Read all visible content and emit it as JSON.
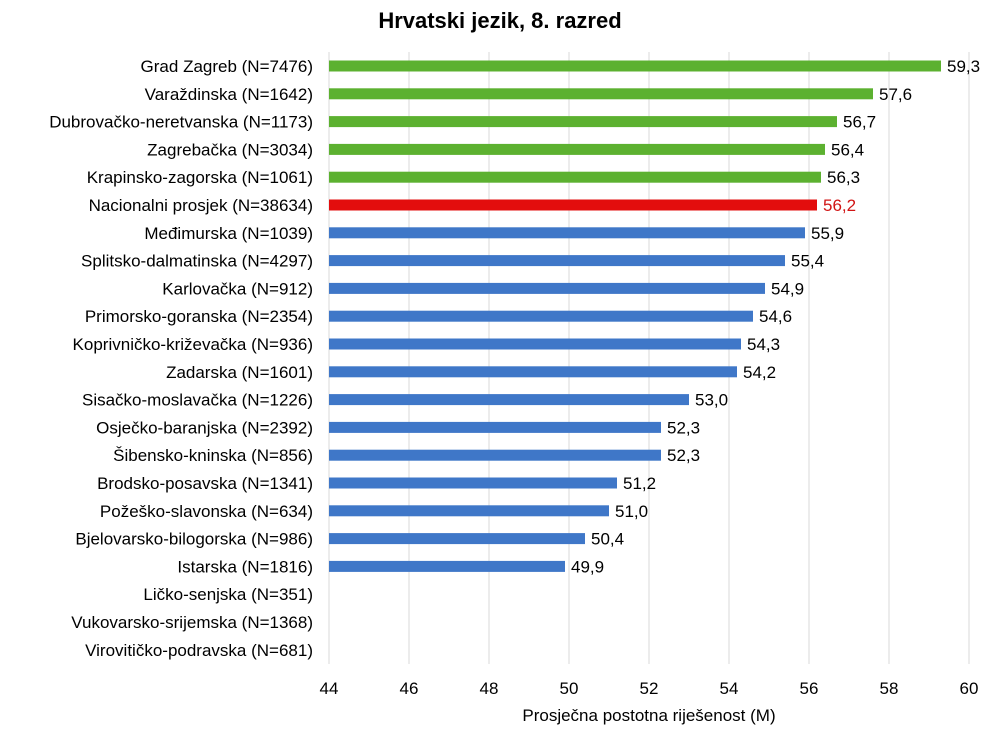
{
  "chart_data": {
    "type": "bar",
    "orientation": "horizontal",
    "title": "Hrvatski jezik, 8. razred",
    "xlabel": "Prosječna postotna riješenost (M)",
    "ylabel": "",
    "xlim": [
      44,
      60
    ],
    "x_ticks": [
      "44",
      "46",
      "48",
      "50",
      "52",
      "54",
      "56",
      "58",
      "60"
    ],
    "grid": "vertical",
    "colors": {
      "above": "#5cb130",
      "national": "#e30d0d",
      "below": "#3f77c8",
      "national_label": "#d11414"
    },
    "categories": [
      "Grad Zagreb (N=7476)",
      "Varaždinska (N=1642)",
      "Dubrovačko-neretvanska (N=1173)",
      "Zagrebačka (N=3034)",
      "Krapinsko-zagorska (N=1061)",
      "Nacionalni prosjek (N=38634)",
      "Međimurska (N=1039)",
      "Splitsko-dalmatinska (N=4297)",
      "Karlovačka (N=912)",
      "Primorsko-goranska (N=2354)",
      "Koprivničko-križevačka (N=936)",
      "Zadarska (N=1601)",
      "Sisačko-moslavačka (N=1226)",
      "Osječko-baranjska (N=2392)",
      "Šibensko-kninska (N=856)",
      "Brodsko-posavska (N=1341)",
      "Požeško-slavonska (N=634)",
      "Bjelovarsko-bilogorska (N=986)",
      "Istarska (N=1816)",
      "Ličko-senjska (N=351)",
      "Vukovarsko-srijemska (N=1368)",
      "Virovitičko-podravska (N=681)"
    ],
    "values": [
      59.3,
      57.6,
      56.7,
      56.4,
      56.3,
      56.2,
      55.9,
      55.4,
      54.9,
      54.6,
      54.3,
      54.2,
      53.0,
      52.3,
      52.3,
      51.2,
      51.0,
      50.4,
      49.9,
      null,
      null,
      null
    ],
    "value_labels": [
      "59,3",
      "57,6",
      "56,7",
      "56,4",
      "56,3",
      "56,2",
      "55,9",
      "55,4",
      "54,9",
      "54,6",
      "54,3",
      "54,2",
      "53,0",
      "52,3",
      "52,3",
      "51,2",
      "51,0",
      "50,4",
      "49,9",
      "",
      "",
      ""
    ],
    "groups": [
      "above",
      "above",
      "above",
      "above",
      "above",
      "national",
      "below",
      "below",
      "below",
      "below",
      "below",
      "below",
      "below",
      "below",
      "below",
      "below",
      "below",
      "below",
      "below",
      "below",
      "below",
      "below"
    ]
  }
}
